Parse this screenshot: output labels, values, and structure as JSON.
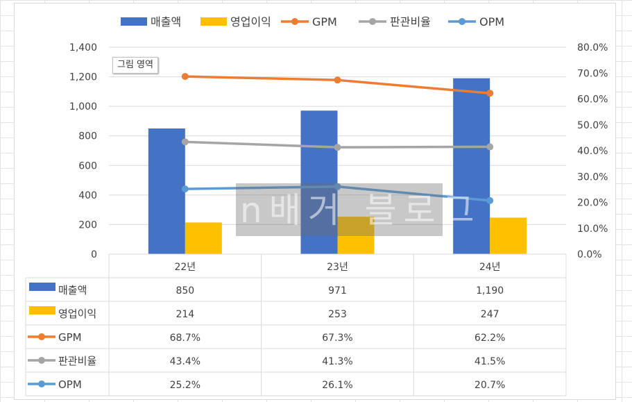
{
  "chart_data": {
    "type": "bar",
    "categories": [
      "22년",
      "23년",
      "24년"
    ],
    "bar_series": [
      {
        "name": "매출액",
        "values": [
          850,
          971,
          1190
        ],
        "labels": [
          "850",
          "971",
          "1,190"
        ],
        "color": "#4472c4"
      },
      {
        "name": "영업이익",
        "values": [
          214,
          253,
          247
        ],
        "labels": [
          "214",
          "253",
          "247"
        ],
        "color": "#ffc000"
      }
    ],
    "line_series": [
      {
        "name": "GPM",
        "values": [
          68.7,
          67.3,
          62.2
        ],
        "labels": [
          "68.7%",
          "67.3%",
          "62.2%"
        ],
        "color": "#ed7d31"
      },
      {
        "name": "판관비율",
        "values": [
          43.4,
          41.3,
          41.5
        ],
        "labels": [
          "43.4%",
          "41.3%",
          "41.5%"
        ],
        "color": "#a5a5a5"
      },
      {
        "name": "OPM",
        "values": [
          25.2,
          26.1,
          20.7
        ],
        "labels": [
          "25.2%",
          "26.1%",
          "20.7%"
        ],
        "color": "#5b9bd5"
      }
    ],
    "y_left": {
      "min": 0,
      "max": 1400,
      "ticks": [
        "0",
        "200",
        "400",
        "600",
        "800",
        "1,000",
        "1,200",
        "1,400"
      ]
    },
    "y_right": {
      "min": 0,
      "max": 80,
      "ticks": [
        "0.0%",
        "10.0%",
        "20.0%",
        "30.0%",
        "40.0%",
        "50.0%",
        "60.0%",
        "70.0%",
        "80.0%"
      ]
    },
    "gridlines": true,
    "legend": "top",
    "data_table": true
  },
  "tooltip": {
    "label": "그림 영역"
  },
  "watermark": {
    "text": "n배거 블로그"
  }
}
